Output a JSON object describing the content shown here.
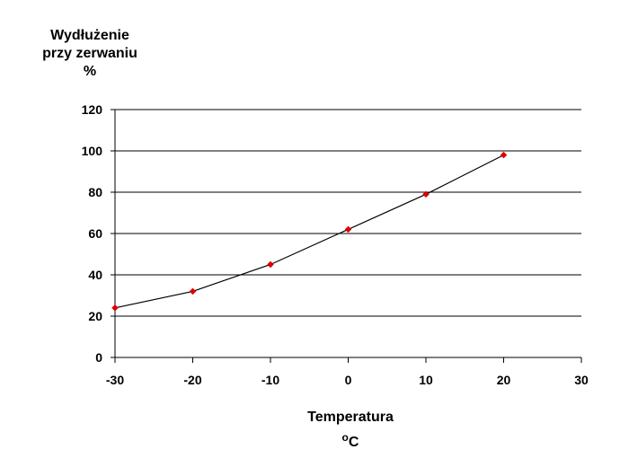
{
  "chart_data": {
    "type": "line",
    "x": [
      -30,
      -20,
      -10,
      0,
      10,
      20
    ],
    "y": [
      24,
      32,
      45,
      62,
      79,
      98
    ],
    "ylabel_lines": [
      "Wydłużenie",
      "przy zerwaniu",
      "%"
    ],
    "xlabel": "Temperatura",
    "xunit_sup": "o",
    "xunit_main": "C",
    "xlim": [
      -30,
      30
    ],
    "ylim": [
      0,
      120
    ],
    "xticks": [
      -30,
      -20,
      -10,
      0,
      10,
      20,
      30
    ],
    "yticks": [
      0,
      20,
      40,
      60,
      80,
      100,
      120
    ],
    "xtick_labels": [
      "-30",
      "-20",
      "-10",
      "0",
      "10",
      "20",
      "30"
    ],
    "ytick_labels": [
      "0",
      "20",
      "40",
      "60",
      "80",
      "100",
      "120"
    ],
    "grid": "horizontal",
    "line_color": "#000000",
    "marker_color": "#dd0000",
    "grid_color": "#000000"
  }
}
